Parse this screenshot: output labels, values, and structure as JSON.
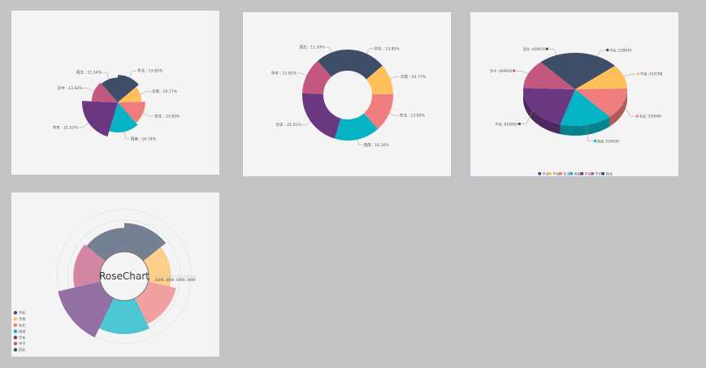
{
  "colors": [
    "#3f4e68",
    "#ffc05c",
    "#f07d7d",
    "#05b4c4",
    "#6a3881",
    "#c4577f",
    "#3f4e68"
  ],
  "rose_center_label": "RoseChart",
  "chart_data": [
    {
      "type": "pie",
      "variant": "nightingale-rose-radius",
      "labels": [
        "华北 : 13.85%",
        "华南 : 10.77%",
        "东北 : 13.85%",
        "西南 : 16.16%",
        "华东 : 21.01%",
        "华中 : 12.82%",
        "西北 : 11.54%"
      ],
      "categories": [
        "华北",
        "华南",
        "东北",
        "西南",
        "华东",
        "华中",
        "西北"
      ],
      "values": [
        13.85,
        10.77,
        13.85,
        16.16,
        21.01,
        12.82,
        11.54
      ]
    },
    {
      "type": "pie",
      "variant": "donut",
      "labels": [
        "华北 : 13.85%",
        "华南 : 10.77%",
        "东北 : 13.85%",
        "西南 : 16.16%",
        "华东 : 21.01%",
        "华中 : 12.82%",
        "西北 : 11.54%"
      ],
      "categories": [
        "华北",
        "华南",
        "东北",
        "西南",
        "华东",
        "华中",
        "西北"
      ],
      "values": [
        13.85,
        10.77,
        13.85,
        16.16,
        21.01,
        12.82,
        11.54
      ]
    },
    {
      "type": "pie",
      "variant": "3d",
      "labels": [
        "华北 :539940",
        "华南 :419798",
        "东北 :539940",
        "西南 :629930",
        "华东 :819000",
        "华中 :499930",
        "西北 :449930"
      ],
      "categories": [
        "华北",
        "华南",
        "东北",
        "西南",
        "华东",
        "华中",
        "西北"
      ],
      "values": [
        539940,
        419798,
        539940,
        629930,
        819000,
        499930,
        449930
      ],
      "legend": [
        "华北",
        "华南",
        "东北",
        "西南",
        "华东",
        "华中",
        "西北"
      ],
      "legend_position": "bottom"
    },
    {
      "type": "pie",
      "variant": "rose-with-axis",
      "categories": [
        "华北",
        "华南",
        "东北",
        "西南",
        "华东",
        "华中",
        "西北"
      ],
      "values": [
        539940,
        419798,
        539940,
        629930,
        819000,
        499930,
        449930
      ],
      "axis_ticks": [
        "0",
        "200K",
        "400K",
        "600K",
        "800K"
      ],
      "legend": [
        "华北",
        "华南",
        "东北",
        "西南",
        "华东",
        "华中",
        "西北"
      ],
      "legend_position": "bottom-left"
    }
  ]
}
